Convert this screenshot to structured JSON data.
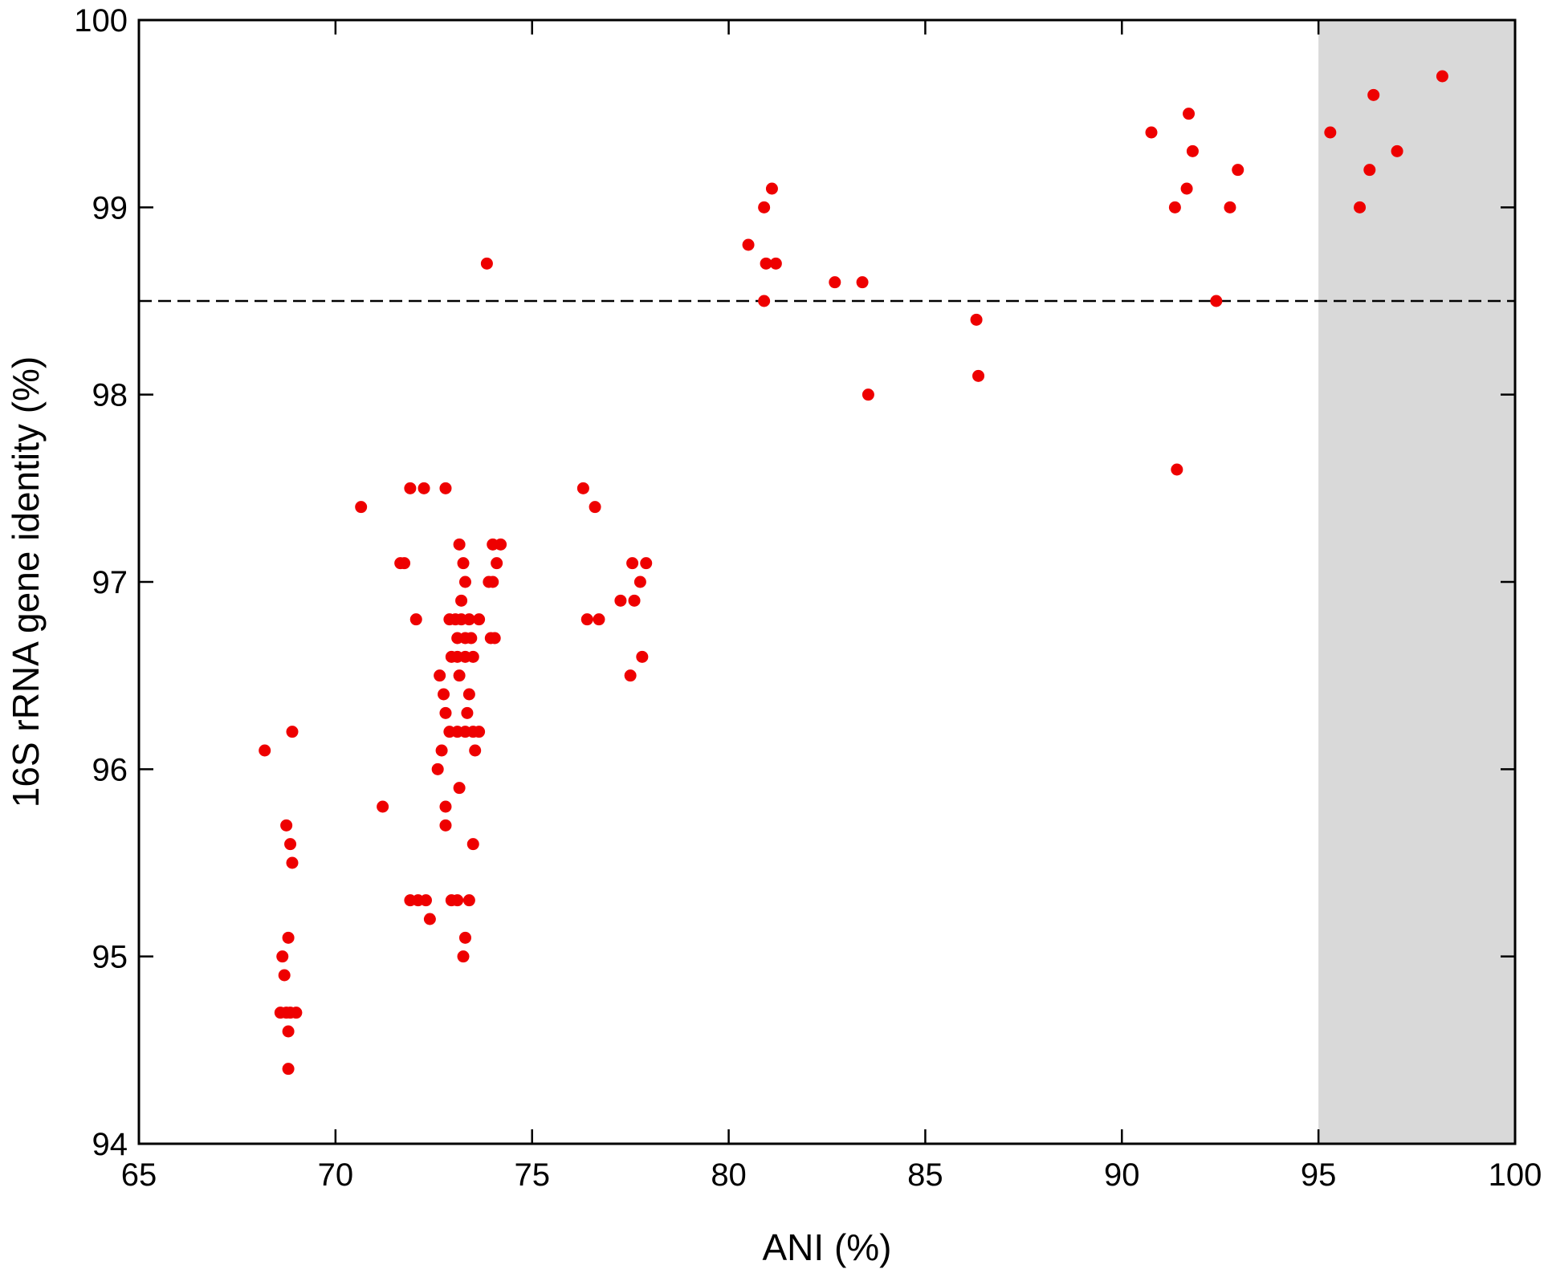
{
  "chart_data": {
    "type": "scatter",
    "xlabel": "ANI (%)",
    "ylabel": "16S rRNA gene identity (%)",
    "xlim": [
      65,
      100
    ],
    "xticks": [
      65,
      70,
      75,
      80,
      85,
      90,
      95,
      100
    ],
    "ylim": [
      94,
      100
    ],
    "yticks": [
      94,
      95,
      96,
      97,
      98,
      99,
      100
    ],
    "color": "#ee0000",
    "shaded_xrange": [
      95,
      100
    ],
    "shade_color": "#d9d9d9",
    "hline": 98.5,
    "x": [
      68.2,
      68.9,
      68.75,
      68.85,
      68.9,
      68.8,
      68.65,
      68.7,
      68.6,
      68.75,
      68.85,
      69.0,
      68.8,
      68.8,
      70.65,
      71.2,
      71.65,
      71.75,
      71.9,
      72.25,
      72.8,
      72.05,
      71.9,
      72.1,
      72.3,
      72.4,
      72.65,
      72.7,
      72.6,
      72.75,
      72.8,
      72.8,
      72.8,
      72.9,
      73.05,
      73.2,
      73.4,
      73.65,
      73.15,
      73.25,
      73.3,
      73.2,
      73.1,
      73.3,
      73.45,
      72.95,
      73.1,
      73.3,
      73.5,
      73.15,
      73.4,
      73.35,
      72.9,
      73.1,
      73.3,
      73.5,
      73.65,
      73.55,
      73.15,
      73.5,
      72.95,
      73.1,
      73.4,
      73.3,
      73.25,
      73.85,
      73.9,
      74.0,
      74.0,
      74.2,
      74.1,
      73.95,
      74.05,
      76.3,
      76.6,
      76.4,
      76.7,
      77.25,
      77.6,
      77.55,
      77.9,
      77.75,
      77.8,
      77.5,
      80.5,
      80.9,
      81.1,
      80.95,
      81.2,
      80.9,
      82.7,
      83.4,
      83.55,
      86.3,
      86.35,
      90.75,
      91.7,
      91.8,
      91.65,
      91.35,
      91.4,
      92.4,
      92.95,
      92.75,
      95.3,
      96.4,
      98.15,
      96.3,
      97.0,
      96.05
    ],
    "values": [
      96.1,
      96.2,
      95.7,
      95.6,
      95.5,
      95.1,
      95.0,
      94.9,
      94.7,
      94.7,
      94.7,
      94.7,
      94.6,
      94.4,
      97.4,
      95.8,
      97.1,
      97.1,
      97.5,
      97.5,
      97.5,
      96.8,
      95.3,
      95.3,
      95.3,
      95.2,
      96.5,
      96.1,
      96.0,
      96.4,
      96.3,
      95.8,
      95.7,
      96.8,
      96.8,
      96.8,
      96.8,
      96.8,
      97.2,
      97.1,
      97.0,
      96.9,
      96.7,
      96.7,
      96.7,
      96.6,
      96.6,
      96.6,
      96.6,
      96.5,
      96.4,
      96.3,
      96.2,
      96.2,
      96.2,
      96.2,
      96.2,
      96.1,
      95.9,
      95.6,
      95.3,
      95.3,
      95.3,
      95.1,
      95.0,
      98.7,
      97.0,
      97.0,
      97.2,
      97.2,
      97.1,
      96.7,
      96.7,
      97.5,
      97.4,
      96.8,
      96.8,
      96.9,
      96.9,
      97.1,
      97.1,
      97.0,
      96.6,
      96.5,
      98.8,
      99.0,
      99.1,
      98.7,
      98.7,
      98.5,
      98.6,
      98.6,
      98.0,
      98.4,
      98.1,
      99.4,
      99.5,
      99.3,
      99.1,
      99.0,
      97.6,
      98.5,
      99.2,
      99.0,
      99.4,
      99.6,
      99.7,
      99.2,
      99.3,
      99.0
    ]
  }
}
